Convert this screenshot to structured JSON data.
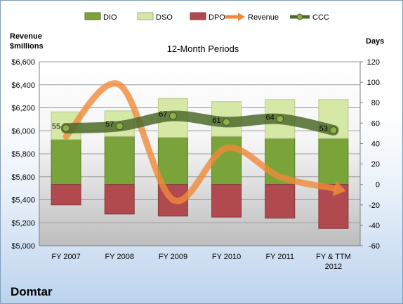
{
  "company": "Domtar",
  "chart_data": {
    "type": "bar",
    "title": "12-Month Periods",
    "categories": [
      "FY 2007",
      "FY 2008",
      "FY 2009",
      "FY 2010",
      "FY 2011",
      "FY & TTM 2012"
    ],
    "left_axis": {
      "label_line1": "Revenue",
      "label_line2": "$millions",
      "range": [
        5000,
        6600
      ],
      "ticks": [
        "$5,000",
        "$5,200",
        "$5,400",
        "$5,600",
        "$5,800",
        "$6,000",
        "$6,200",
        "$6,400",
        "$6,600"
      ]
    },
    "right_axis": {
      "label": "Days",
      "range": [
        -60,
        120
      ],
      "ticks": [
        "-60",
        "-40",
        "-20",
        "0",
        "20",
        "40",
        "60",
        "80",
        "100",
        "120"
      ]
    },
    "grid": true,
    "legend_position": "top",
    "series": [
      {
        "name": "DIO",
        "kind": "stacked-bar",
        "axis": "right",
        "color": "#7aa33a",
        "values": [
          44,
          47,
          46,
          47,
          45,
          45
        ]
      },
      {
        "name": "DSO",
        "kind": "stacked-bar",
        "axis": "right",
        "color": "#d6e8a6",
        "values": [
          27,
          25,
          38,
          34,
          38,
          38
        ]
      },
      {
        "name": "DPO",
        "kind": "negative-bar",
        "axis": "right",
        "color": "#b04a4e",
        "values": [
          -20,
          -29,
          -31,
          -32,
          -33,
          -43
        ]
      },
      {
        "name": "Revenue",
        "kind": "line",
        "axis": "left",
        "color": "#f08a3a",
        "values": [
          5950,
          6400,
          5400,
          5850,
          5600,
          5500
        ]
      },
      {
        "name": "CCC",
        "kind": "line",
        "axis": "right",
        "color": "#4e6a2a",
        "values": [
          55,
          57,
          67,
          61,
          64,
          53
        ]
      }
    ],
    "ccc_labels": [
      "55",
      "57",
      "67",
      "61",
      "64",
      "53"
    ]
  }
}
